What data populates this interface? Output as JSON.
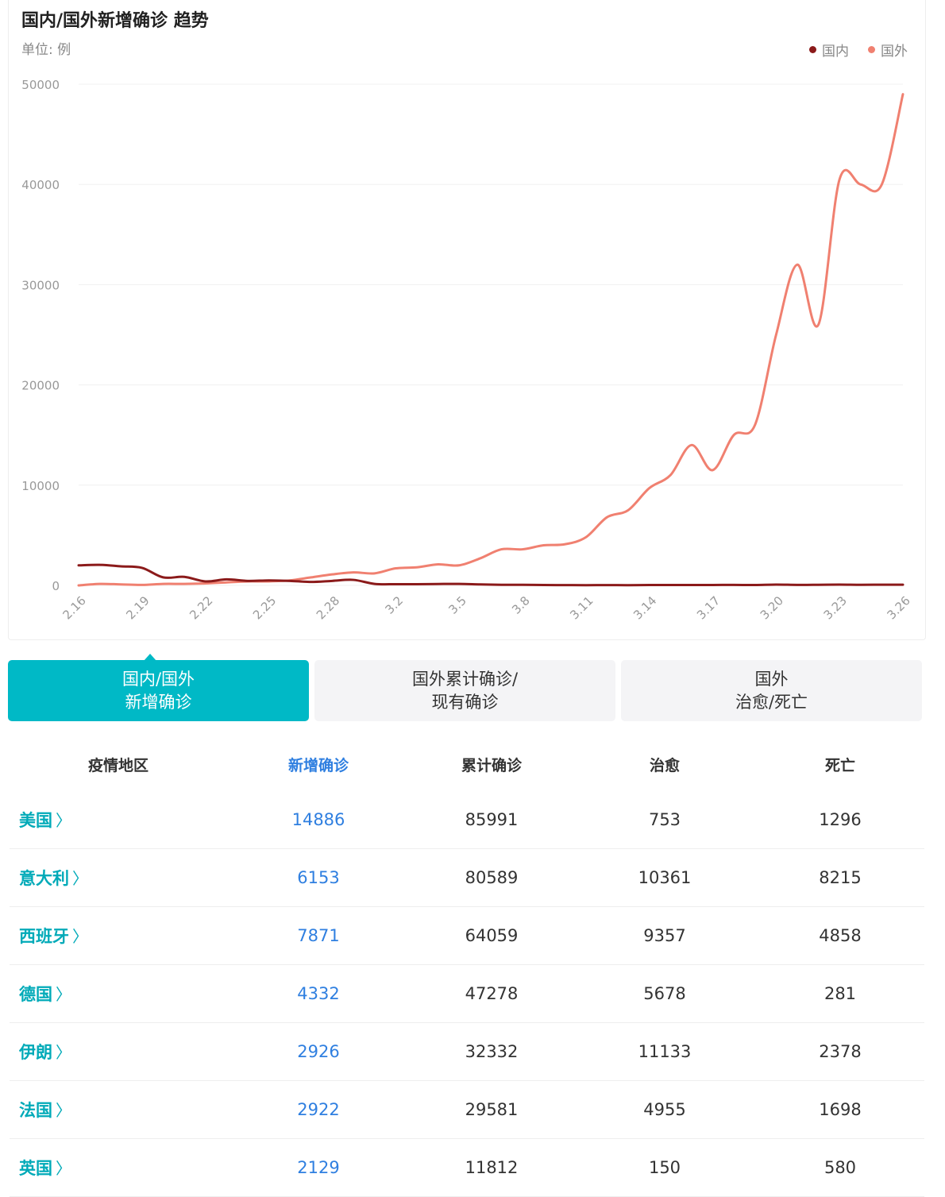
{
  "chart_data": {
    "type": "line",
    "title": "国内/国外新增确诊 趋势",
    "subtitle": "单位: 例",
    "legend_position": "top-right",
    "ylim": [
      0,
      50000
    ],
    "y_ticks": [
      0,
      10000,
      20000,
      30000,
      40000,
      50000
    ],
    "x": [
      "2.16",
      "2.17",
      "2.18",
      "2.19",
      "2.20",
      "2.21",
      "2.22",
      "2.23",
      "2.24",
      "2.25",
      "2.26",
      "2.27",
      "2.28",
      "2.29",
      "3.1",
      "3.2",
      "3.3",
      "3.4",
      "3.5",
      "3.6",
      "3.7",
      "3.8",
      "3.9",
      "3.10",
      "3.11",
      "3.12",
      "3.13",
      "3.14",
      "3.15",
      "3.16",
      "3.17",
      "3.18",
      "3.19",
      "3.20",
      "3.21",
      "3.22",
      "3.23",
      "3.24",
      "3.25",
      "3.26"
    ],
    "x_tick_labels": [
      "2.16",
      "2.19",
      "2.22",
      "2.25",
      "2.28",
      "3.2",
      "3.5",
      "3.8",
      "3.11",
      "3.14",
      "3.17",
      "3.20",
      "3.23",
      "3.26"
    ],
    "series": [
      {
        "name": "国内",
        "color": "#8b1a1a",
        "values": [
          2000,
          2050,
          1900,
          1750,
          800,
          850,
          400,
          600,
          450,
          500,
          450,
          350,
          450,
          550,
          150,
          120,
          120,
          140,
          150,
          100,
          60,
          60,
          40,
          30,
          20,
          30,
          20,
          40,
          40,
          40,
          40,
          50,
          40,
          80,
          50,
          60,
          80,
          60,
          70,
          70
        ]
      },
      {
        "name": "国外",
        "color": "#f08070",
        "values": [
          0,
          150,
          100,
          50,
          150,
          150,
          200,
          300,
          400,
          400,
          500,
          800,
          1100,
          1300,
          1200,
          1700,
          1800,
          2100,
          2000,
          2700,
          3600,
          3600,
          4000,
          4100,
          4800,
          6800,
          7500,
          9700,
          11000,
          14000,
          11500,
          15000,
          16000,
          25000,
          32000,
          26000,
          40500,
          40000,
          40000,
          49000
        ]
      }
    ]
  },
  "tabs": [
    {
      "line1": "国内/国外",
      "line2": "新增确诊"
    },
    {
      "line1": "国外累计确诊/",
      "line2": "现有确诊"
    },
    {
      "line1": "国外",
      "line2": "治愈/死亡"
    }
  ],
  "table": {
    "headers": [
      "疫情地区",
      "新增确诊",
      "累计确诊",
      "治愈",
      "死亡"
    ],
    "rows": [
      {
        "region": "美国",
        "new": "14886",
        "total": "85991",
        "cured": "753",
        "dead": "1296"
      },
      {
        "region": "意大利",
        "new": "6153",
        "total": "80589",
        "cured": "10361",
        "dead": "8215"
      },
      {
        "region": "西班牙",
        "new": "7871",
        "total": "64059",
        "cured": "9357",
        "dead": "4858"
      },
      {
        "region": "德国",
        "new": "4332",
        "total": "47278",
        "cured": "5678",
        "dead": "281"
      },
      {
        "region": "伊朗",
        "new": "2926",
        "total": "32332",
        "cured": "11133",
        "dead": "2378"
      },
      {
        "region": "法国",
        "new": "2922",
        "total": "29581",
        "cured": "4955",
        "dead": "1698"
      },
      {
        "region": "英国",
        "new": "2129",
        "total": "11812",
        "cured": "150",
        "dead": "580"
      }
    ]
  },
  "colors": {
    "accent": "#00b9c6",
    "link": "#00aab8",
    "highlight_blue": "#2f7fe0",
    "domestic": "#8b1a1a",
    "foreign": "#f08070"
  },
  "icons": {
    "row_chevron": "chevron-right-icon"
  }
}
